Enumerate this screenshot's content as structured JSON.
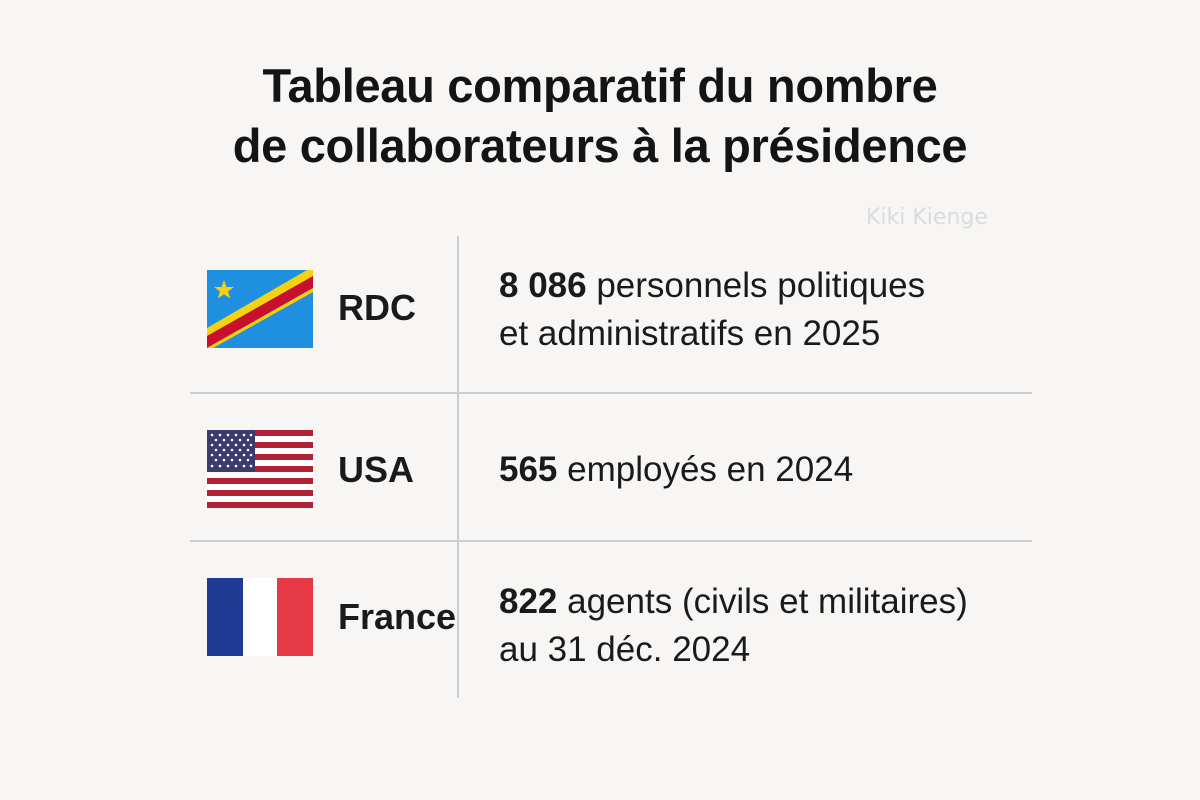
{
  "title": {
    "line1": "Tableau comparatif du nombre",
    "line2": "de collaborateurs à la présidence"
  },
  "watermark": "Kiki Kienge",
  "rows": [
    {
      "country": "RDC",
      "flag_icon": "drc-flag-icon",
      "number": "8 086",
      "text_line1": " personnels politiques",
      "text_line2": "et administratifs en 2025"
    },
    {
      "country": "USA",
      "flag_icon": "usa-flag-icon",
      "number": "565",
      "text_line1": " employés en 2024"
    },
    {
      "country": "France",
      "flag_icon": "france-flag-icon",
      "number": "822",
      "text_line1": " agents (civils et militaires)",
      "text_line2": "au 31 déc. 2024"
    }
  ],
  "colors": {
    "background": "#f7f6f4",
    "text": "#161616",
    "divider": "#cdcdcd"
  }
}
